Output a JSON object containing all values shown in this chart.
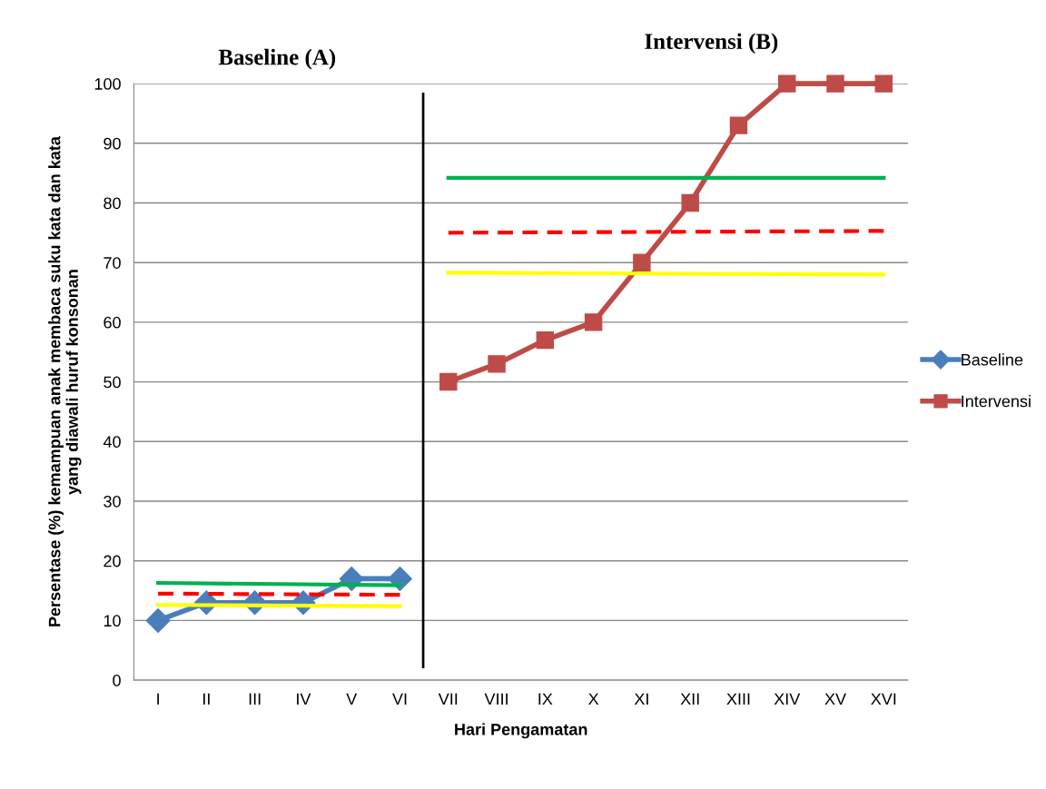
{
  "chart_data": {
    "type": "line",
    "xlabel": "Hari Pengamatan",
    "ylabel": "Persentase (%) kemampuan anak membaca suku kata dan kata\nyang diawali huruf konsonan",
    "annotations": [
      "Baseline (A)",
      "Intervensi (B)"
    ],
    "categories": [
      "I",
      "II",
      "III",
      "IV",
      "V",
      "VI",
      "VII",
      "VIII",
      "IX",
      "X",
      "XI",
      "XII",
      "XIII",
      "XIV",
      "XV",
      "XVI"
    ],
    "ylim": [
      0,
      100
    ],
    "yticks": [
      0,
      10,
      20,
      30,
      40,
      50,
      60,
      70,
      80,
      90,
      100
    ],
    "grid": "y",
    "legend": "right",
    "series": [
      {
        "name": "Baseline",
        "color": "#4a7ebb",
        "marker": "diamond",
        "values": [
          10,
          13,
          13,
          13,
          17,
          17,
          null,
          null,
          null,
          null,
          null,
          null,
          null,
          null,
          null,
          null
        ]
      },
      {
        "name": "Intervensi",
        "color": "#be4b48",
        "marker": "square",
        "values": [
          null,
          null,
          null,
          null,
          null,
          null,
          50,
          53,
          57,
          60,
          70,
          80,
          93,
          100,
          100,
          100
        ]
      },
      {
        "color": "#00b050",
        "values": [
          16.3,
          null,
          null,
          null,
          null,
          15.9,
          null,
          null,
          null,
          null,
          null,
          null,
          null,
          null,
          null,
          null
        ]
      },
      {
        "color": "#ff0000",
        "line_style": "dashed",
        "values": [
          14.5,
          null,
          null,
          null,
          null,
          14.3,
          null,
          null,
          null,
          null,
          null,
          null,
          null,
          null,
          null,
          null
        ]
      },
      {
        "color": "#ffff00",
        "values": [
          12.6,
          null,
          null,
          null,
          null,
          12.4,
          null,
          null,
          null,
          null,
          null,
          null,
          null,
          null,
          null,
          null
        ]
      },
      {
        "color": "#00b050",
        "values": [
          null,
          null,
          null,
          null,
          null,
          null,
          84.2,
          null,
          null,
          null,
          null,
          null,
          null,
          null,
          null,
          84.2
        ]
      },
      {
        "color": "#ff0000",
        "line_style": "dashed",
        "values": [
          null,
          null,
          null,
          null,
          null,
          null,
          75.0,
          null,
          null,
          null,
          null,
          null,
          null,
          null,
          null,
          75.3
        ]
      },
      {
        "color": "#ffff00",
        "values": [
          null,
          null,
          null,
          null,
          null,
          null,
          68.3,
          null,
          null,
          null,
          null,
          null,
          null,
          null,
          null,
          68.0
        ]
      }
    ]
  }
}
